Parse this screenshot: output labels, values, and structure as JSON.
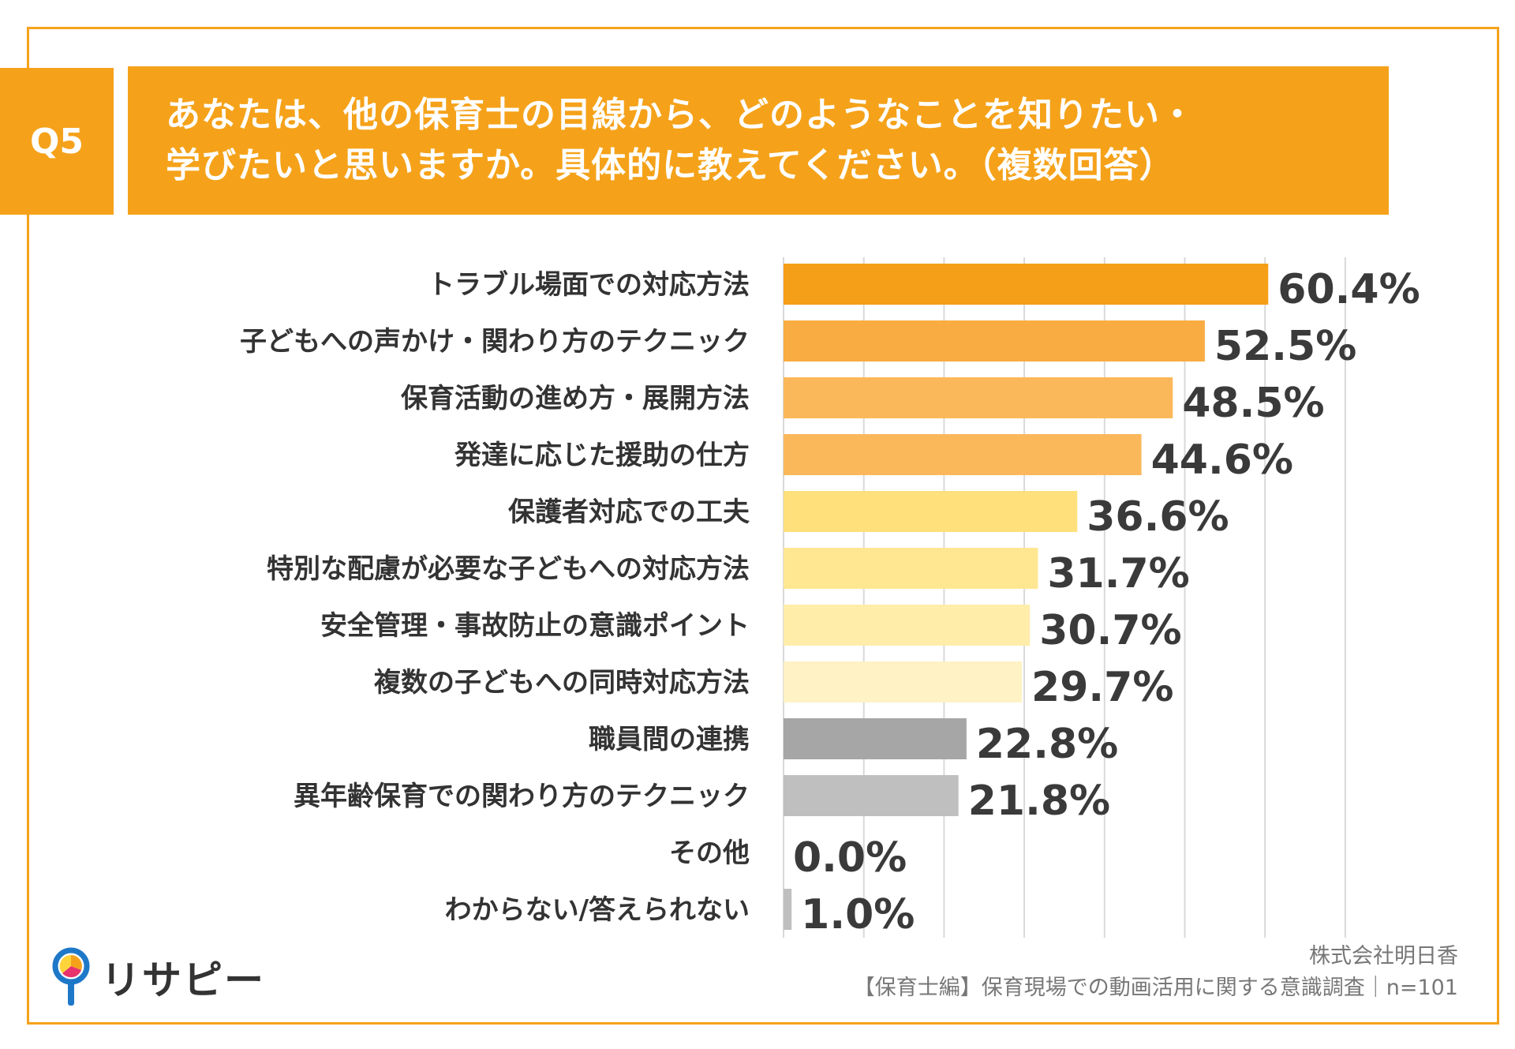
{
  "question": {
    "number": "Q5",
    "title_line1": "あなたは、他の保育士の目線から、どのようなことを知りたい・",
    "title_line2": "学びたいと思いますか。具体的に教えてください。（複数回答）"
  },
  "chart_data": {
    "type": "bar",
    "orientation": "horizontal",
    "categories": [
      "トラブル場面での対応方法",
      "子どもへの声かけ・関わり方のテクニック",
      "保育活動の進め方・展開方法",
      "発達に応じた援助の仕方",
      "保護者対応での工夫",
      "特別な配慮が必要な子どもへの対応方法",
      "安全管理・事故防止の意識ポイント",
      "複数の子どもへの同時対応方法",
      "職員間の連携",
      "異年齢保育での関わり方のテクニック",
      "その他",
      "わからない/答えられない"
    ],
    "values": [
      60.4,
      52.5,
      48.5,
      44.6,
      36.6,
      31.7,
      30.7,
      29.7,
      22.8,
      21.8,
      0.0,
      1.0
    ],
    "value_labels": [
      "60.4%",
      "52.5%",
      "48.5%",
      "44.6%",
      "36.6%",
      "31.7%",
      "30.7%",
      "29.7%",
      "22.8%",
      "21.8%",
      "0.0%",
      "1.0%"
    ],
    "colors": [
      "#f59e18",
      "#f8ac42",
      "#fbb85a",
      "#fbb85a",
      "#ffe07a",
      "#ffe791",
      "#ffeda9",
      "#fff2c4",
      "#a6a6a6",
      "#bfbfbf",
      "#bfbfbf",
      "#bfbfbf"
    ],
    "xlim": [
      0,
      70
    ],
    "grid": true,
    "grid_color": "#d9d9d9",
    "legend": "none"
  },
  "branding": {
    "logo_text": "リサピー"
  },
  "footer": {
    "company": "株式会社明日香",
    "survey": "【保育士編】保育現場での動画活用に関する意識調査｜n=101"
  }
}
